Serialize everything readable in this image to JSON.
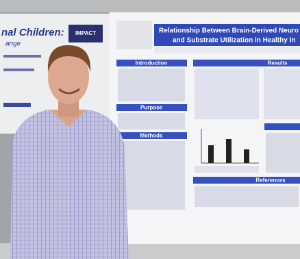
{
  "left_poster": {
    "title_lines": [
      "nal Children:",
      "ange"
    ],
    "logo": "IMPACT"
  },
  "poster": {
    "title_lines": [
      "Relationship Between Brain-Derived Neuro",
      "and Substrate Utilization in Healthy In"
    ],
    "left_sections": [
      "Introduction",
      "Purpose",
      "Methods"
    ],
    "right_sections": [
      "Results",
      "References"
    ]
  }
}
